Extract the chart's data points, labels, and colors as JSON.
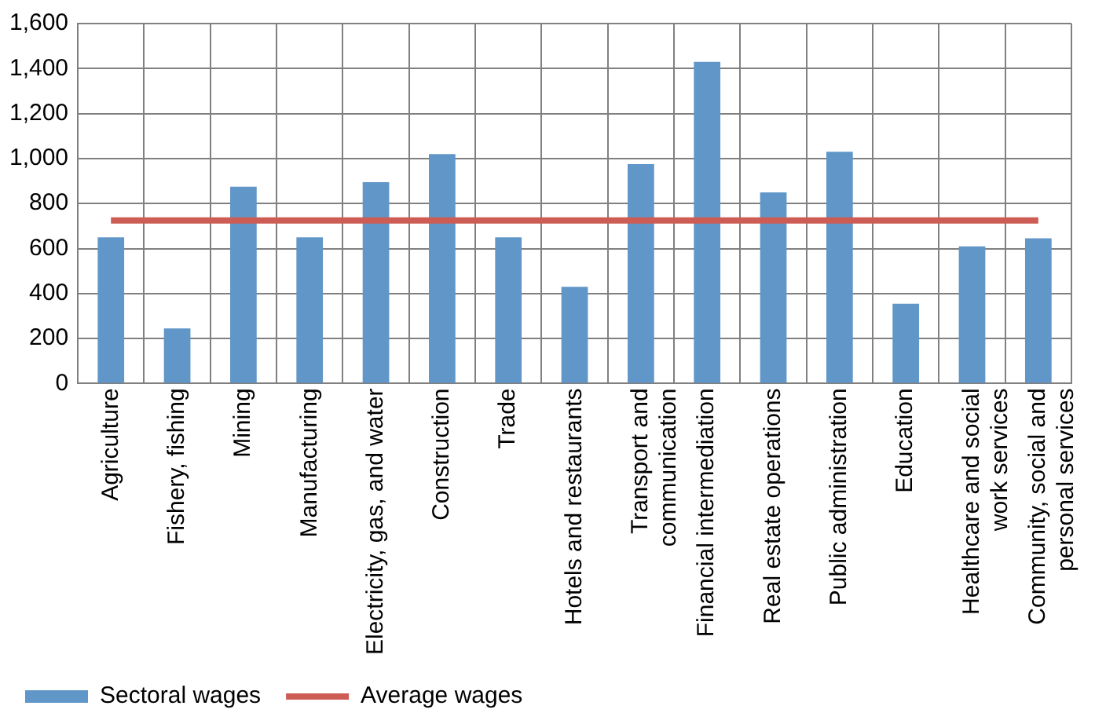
{
  "chart_data": {
    "type": "bar",
    "categories": [
      "Agriculture",
      "Fishery, fishing",
      "Mining",
      "Manufacturing",
      "Electricity, gas, and water",
      "Construction",
      "Trade",
      "Hotels and restaurants",
      "Transport and\ncommunication",
      "Financial intermediation",
      "Real estate operations",
      "Public administration",
      "Education",
      "Healthcare and social\nwork services",
      "Community, social and\npersonal services"
    ],
    "series": [
      {
        "name": "Sectoral wages",
        "color": "#6096c8",
        "values": [
          650,
          245,
          875,
          650,
          895,
          1020,
          650,
          430,
          975,
          1430,
          850,
          1030,
          355,
          610,
          645
        ]
      },
      {
        "name": "Average wages",
        "type": "line",
        "color": "#cd5c54",
        "values": [
          725,
          725,
          725,
          725,
          725,
          725,
          725,
          725,
          725,
          725,
          725,
          725,
          725,
          725,
          725
        ]
      }
    ],
    "ylim": [
      0,
      1600
    ],
    "yticks": [
      0,
      200,
      400,
      600,
      800,
      {
        "value": 1000,
        "label": "1,000"
      },
      {
        "value": 1200,
        "label": "1,200"
      },
      {
        "value": 1400,
        "label": "1,400"
      },
      {
        "value": 1600,
        "label": "1,600"
      }
    ],
    "grid": true,
    "legend": "bottom"
  }
}
